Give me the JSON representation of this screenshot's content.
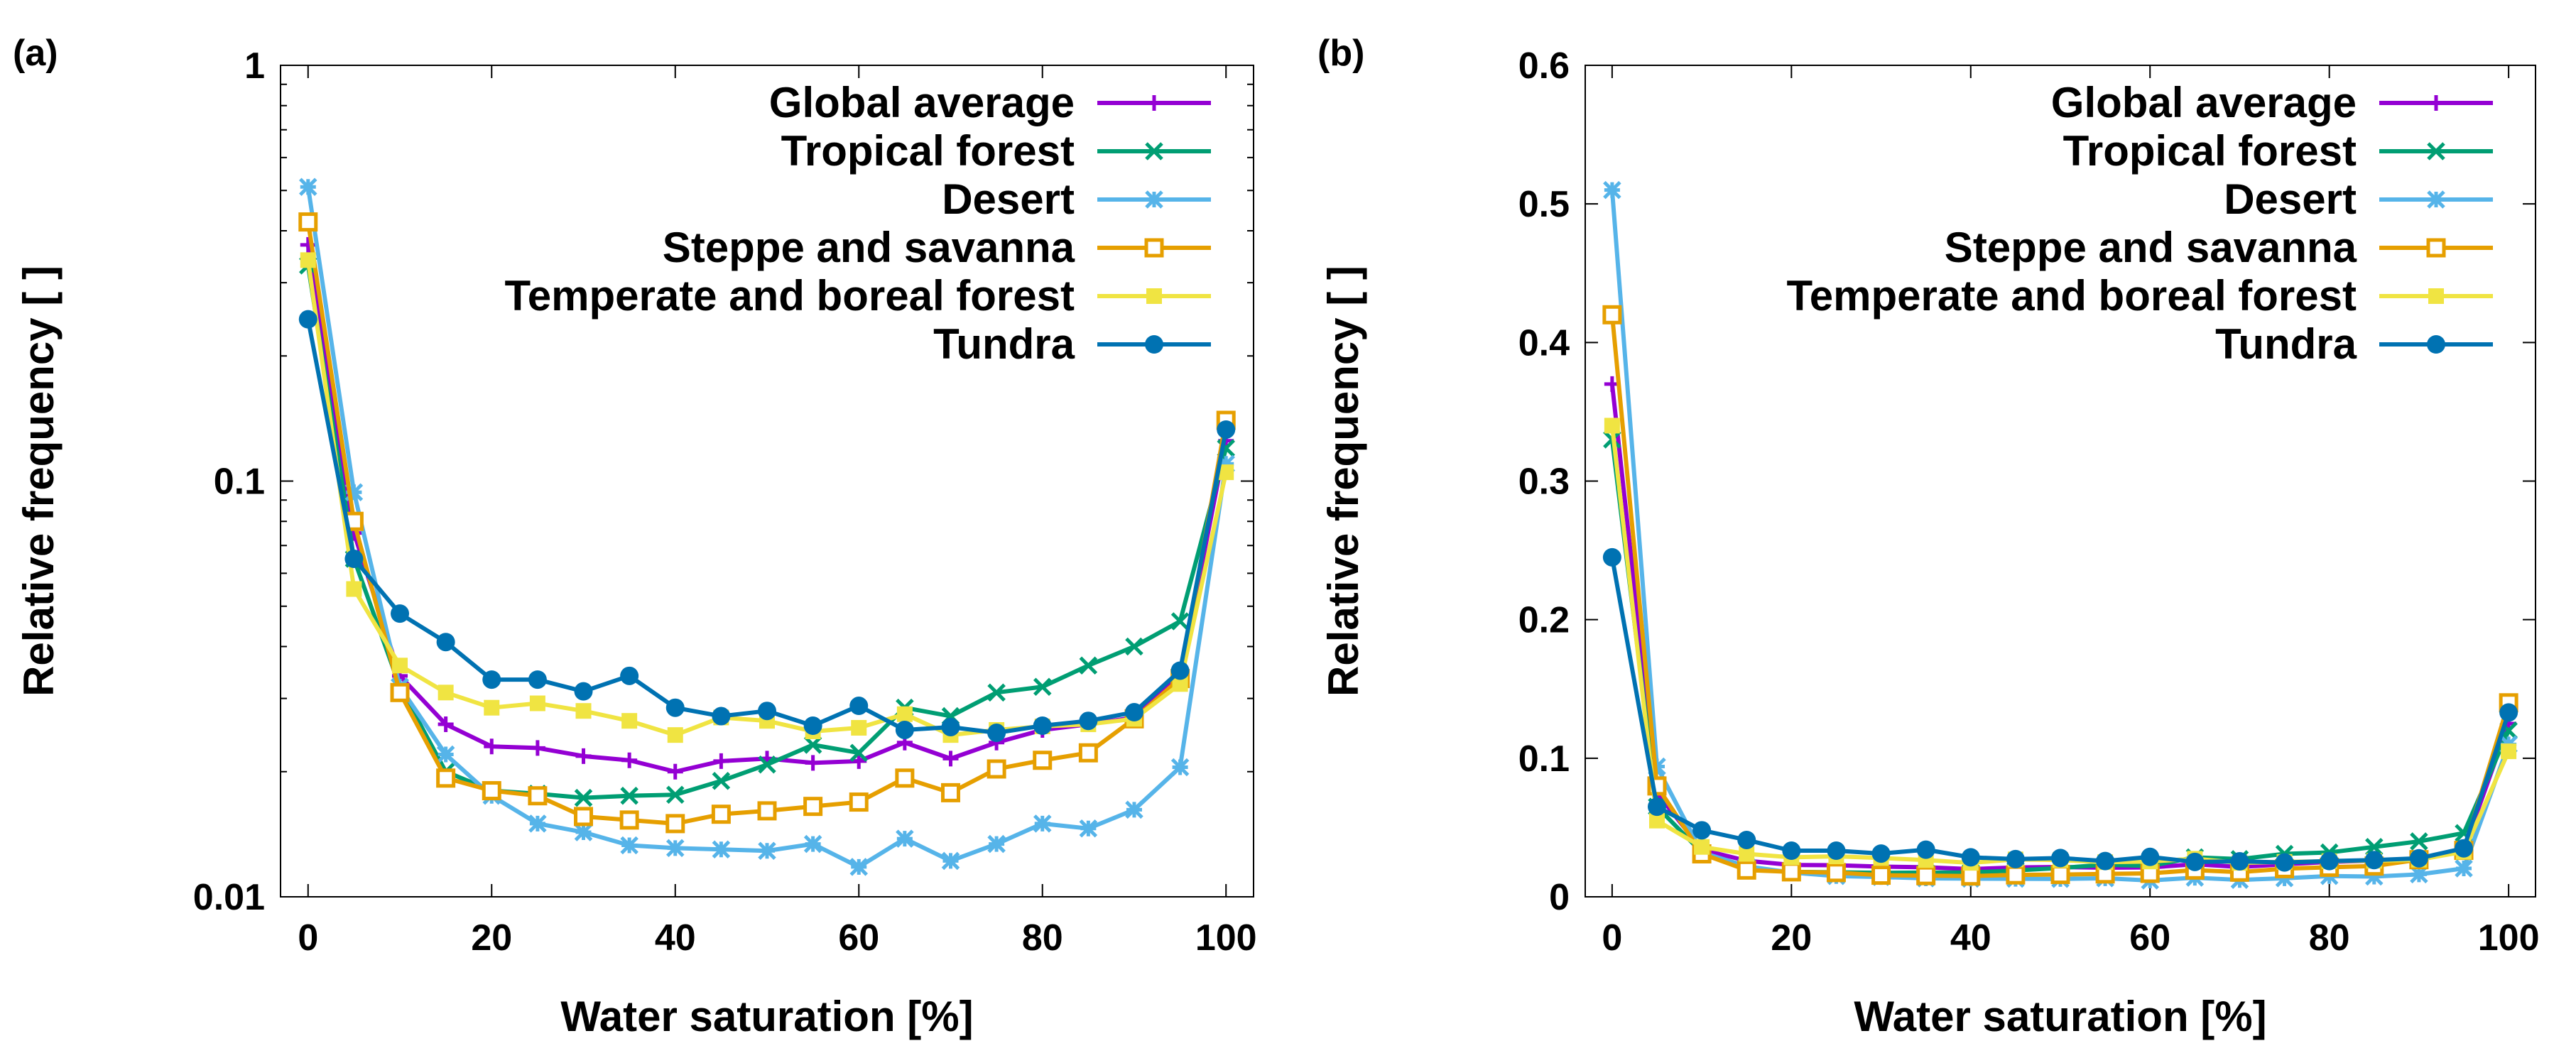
{
  "chart_data": [
    {
      "panel_label": "(a)",
      "type": "line",
      "yscale": "log",
      "xlabel": "Water saturation [%]",
      "ylabel": "Relative frequency [ ]",
      "xlim": [
        -3,
        103
      ],
      "ylim": [
        0.01,
        1
      ],
      "xticks": [
        0,
        20,
        40,
        60,
        80,
        100
      ],
      "xtick_labels": [
        "0",
        "20",
        "40",
        "60",
        "80",
        "100"
      ],
      "yticks": [
        0.01,
        0.1,
        1
      ],
      "ytick_labels": [
        "0.01",
        "0.1",
        "1"
      ],
      "legend_position": "top-right",
      "x": [
        0,
        5,
        10,
        15,
        20,
        25,
        30,
        35,
        40,
        45,
        50,
        55,
        60,
        65,
        70,
        75,
        80,
        85,
        90,
        95,
        100
      ],
      "series": [
        {
          "name": "Global average",
          "color": "#9400D3",
          "marker": "plus",
          "values": [
            0.37,
            0.075,
            0.034,
            0.026,
            0.023,
            0.0228,
            0.0218,
            0.0213,
            0.02,
            0.0212,
            0.0215,
            0.021,
            0.0212,
            0.0235,
            0.0215,
            0.0235,
            0.0252,
            0.026,
            0.027,
            0.034,
            0.125
          ]
        },
        {
          "name": "Tropical forest",
          "color": "#009E73",
          "marker": "cross",
          "values": [
            0.33,
            0.065,
            0.032,
            0.02,
            0.018,
            0.0177,
            0.0173,
            0.0175,
            0.0176,
            0.019,
            0.0208,
            0.0232,
            0.0222,
            0.0285,
            0.0272,
            0.031,
            0.032,
            0.036,
            0.04,
            0.046,
            0.12
          ]
        },
        {
          "name": "Desert",
          "color": "#56B4E9",
          "marker": "star",
          "values": [
            0.51,
            0.094,
            0.032,
            0.022,
            0.0175,
            0.015,
            0.0143,
            0.0133,
            0.0131,
            0.013,
            0.0129,
            0.0134,
            0.0118,
            0.0138,
            0.0122,
            0.0134,
            0.015,
            0.0146,
            0.0162,
            0.0205,
            0.11
          ]
        },
        {
          "name": "Steppe and savanna",
          "color": "#E69F00",
          "marker": "box",
          "values": [
            0.42,
            0.08,
            0.031,
            0.0193,
            0.018,
            0.0175,
            0.0156,
            0.0153,
            0.015,
            0.0158,
            0.0161,
            0.0165,
            0.0169,
            0.0193,
            0.0178,
            0.0203,
            0.0213,
            0.0222,
            0.0268,
            0.0335,
            0.14
          ]
        },
        {
          "name": "Temperate and boreal forest",
          "color": "#F0E442",
          "marker": "filled-box",
          "values": [
            0.34,
            0.055,
            0.036,
            0.031,
            0.0285,
            0.0292,
            0.028,
            0.0265,
            0.0245,
            0.027,
            0.0265,
            0.025,
            0.0255,
            0.0275,
            0.0245,
            0.0252,
            0.0257,
            0.026,
            0.0268,
            0.0325,
            0.105
          ]
        },
        {
          "name": "Tundra",
          "color": "#0072B2",
          "marker": "filled-circle",
          "values": [
            0.245,
            0.065,
            0.048,
            0.041,
            0.0333,
            0.0333,
            0.0312,
            0.034,
            0.0285,
            0.0272,
            0.028,
            0.0258,
            0.0288,
            0.0252,
            0.0256,
            0.0248,
            0.0258,
            0.0265,
            0.0278,
            0.035,
            0.133
          ]
        }
      ]
    },
    {
      "panel_label": "(b)",
      "type": "line",
      "yscale": "linear",
      "xlabel": "Water saturation [%]",
      "ylabel": "Relative frequency [ ]",
      "xlim": [
        -3,
        103
      ],
      "ylim": [
        0,
        0.6
      ],
      "xticks": [
        0,
        20,
        40,
        60,
        80,
        100
      ],
      "xtick_labels": [
        "0",
        "20",
        "40",
        "60",
        "80",
        "100"
      ],
      "yticks": [
        0,
        0.1,
        0.2,
        0.3,
        0.4,
        0.5,
        0.6
      ],
      "ytick_labels": [
        "0",
        "0.1",
        "0.2",
        "0.3",
        "0.4",
        "0.5",
        "0.6"
      ],
      "legend_position": "top-right",
      "x": [
        0,
        5,
        10,
        15,
        20,
        25,
        30,
        35,
        40,
        45,
        50,
        55,
        60,
        65,
        70,
        75,
        80,
        85,
        90,
        95,
        100
      ],
      "series": [
        {
          "name": "Global average",
          "color": "#9400D3",
          "marker": "plus",
          "values": [
            0.37,
            0.075,
            0.034,
            0.026,
            0.023,
            0.0228,
            0.0218,
            0.0213,
            0.02,
            0.0212,
            0.0215,
            0.021,
            0.0212,
            0.0235,
            0.0215,
            0.0235,
            0.0252,
            0.026,
            0.027,
            0.034,
            0.125
          ]
        },
        {
          "name": "Tropical forest",
          "color": "#009E73",
          "marker": "cross",
          "values": [
            0.33,
            0.065,
            0.032,
            0.02,
            0.018,
            0.0177,
            0.0173,
            0.0175,
            0.0176,
            0.019,
            0.0208,
            0.0232,
            0.0222,
            0.0285,
            0.0272,
            0.031,
            0.032,
            0.036,
            0.04,
            0.046,
            0.12
          ]
        },
        {
          "name": "Desert",
          "color": "#56B4E9",
          "marker": "star",
          "values": [
            0.51,
            0.094,
            0.032,
            0.022,
            0.0175,
            0.015,
            0.0143,
            0.0133,
            0.0131,
            0.013,
            0.0129,
            0.0134,
            0.0118,
            0.0138,
            0.0122,
            0.0134,
            0.015,
            0.0146,
            0.0162,
            0.0205,
            0.11
          ]
        },
        {
          "name": "Steppe and savanna",
          "color": "#E69F00",
          "marker": "box",
          "values": [
            0.42,
            0.08,
            0.031,
            0.0193,
            0.018,
            0.0175,
            0.0156,
            0.0153,
            0.015,
            0.0158,
            0.0161,
            0.0165,
            0.0169,
            0.0193,
            0.0178,
            0.0203,
            0.0213,
            0.0222,
            0.0268,
            0.0335,
            0.14
          ]
        },
        {
          "name": "Temperate and boreal forest",
          "color": "#F0E442",
          "marker": "filled-box",
          "values": [
            0.34,
            0.055,
            0.036,
            0.031,
            0.0285,
            0.0292,
            0.028,
            0.0265,
            0.0245,
            0.027,
            0.0265,
            0.025,
            0.0255,
            0.0275,
            0.0245,
            0.0252,
            0.0257,
            0.026,
            0.0268,
            0.0325,
            0.105
          ]
        },
        {
          "name": "Tundra",
          "color": "#0072B2",
          "marker": "filled-circle",
          "values": [
            0.245,
            0.065,
            0.048,
            0.041,
            0.0333,
            0.0333,
            0.0312,
            0.034,
            0.0285,
            0.0272,
            0.028,
            0.0258,
            0.0288,
            0.0252,
            0.0256,
            0.0248,
            0.0258,
            0.0265,
            0.0278,
            0.035,
            0.133
          ]
        }
      ]
    }
  ]
}
